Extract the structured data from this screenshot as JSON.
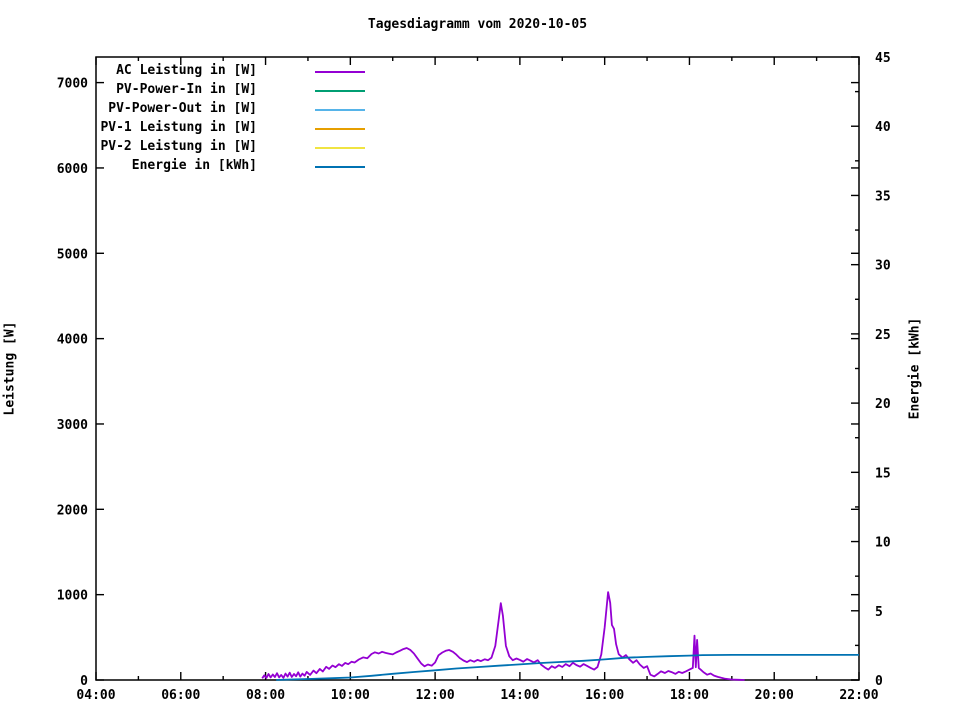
{
  "title": "Tagesdiagramm vom 2020-10-05",
  "axes": {
    "x": {
      "major_tick_labels": [
        "04:00",
        "06:00",
        "08:00",
        "10:00",
        "12:00",
        "14:00",
        "16:00",
        "18:00",
        "20:00",
        "22:00"
      ],
      "major_tick_hours": [
        4,
        6,
        8,
        10,
        12,
        14,
        16,
        18,
        20,
        22
      ],
      "minor_tick_hours": [
        5,
        7,
        9,
        11,
        13,
        15,
        17,
        19,
        21
      ],
      "range_hours": [
        4,
        22
      ]
    },
    "y_left": {
      "label": "Leistung [W]",
      "tick_values": [
        0,
        1000,
        2000,
        3000,
        4000,
        5000,
        6000,
        7000
      ],
      "range": [
        0,
        7300
      ]
    },
    "y_right": {
      "label": "Energie [kWh]",
      "tick_values": [
        0,
        5,
        10,
        15,
        20,
        25,
        30,
        35,
        40,
        45
      ],
      "minor_tick_step": 2.5,
      "range": [
        0,
        45
      ]
    }
  },
  "legend": [
    {
      "label": "AC Leistung in [W]",
      "color": "#9400d3"
    },
    {
      "label": "PV-Power-In in [W]",
      "color": "#009e73"
    },
    {
      "label": "PV-Power-Out in [W]",
      "color": "#56b4e9"
    },
    {
      "label": "PV-1 Leistung in [W]",
      "color": "#e69f00"
    },
    {
      "label": "PV-2 Leistung in [W]",
      "color": "#f0e442"
    },
    {
      "label": "Energie in [kWh]",
      "color": "#0072b2"
    }
  ],
  "chart_data": {
    "type": "line",
    "title": "Tagesdiagramm vom 2020-10-05",
    "xlabel": "",
    "ylabel": "Leistung [W]",
    "y2label": "Energie [kWh]",
    "x_unit": "hour_of_day",
    "xlim": [
      4,
      22
    ],
    "ylim": [
      0,
      7300
    ],
    "y2lim": [
      0,
      45
    ],
    "grid": false,
    "legend_position": "top-left-inside",
    "series": [
      {
        "name": "AC Leistung in [W]",
        "color": "#9400d3",
        "axis": "left",
        "points": [
          [
            7.92,
            20
          ],
          [
            7.97,
            55
          ],
          [
            8.02,
            25
          ],
          [
            8.07,
            70
          ],
          [
            8.12,
            30
          ],
          [
            8.17,
            65
          ],
          [
            8.22,
            35
          ],
          [
            8.27,
            80
          ],
          [
            8.32,
            30
          ],
          [
            8.37,
            60
          ],
          [
            8.42,
            25
          ],
          [
            8.47,
            75
          ],
          [
            8.52,
            40
          ],
          [
            8.57,
            85
          ],
          [
            8.62,
            35
          ],
          [
            8.67,
            70
          ],
          [
            8.72,
            45
          ],
          [
            8.77,
            90
          ],
          [
            8.82,
            40
          ],
          [
            8.87,
            75
          ],
          [
            8.92,
            50
          ],
          [
            8.97,
            95
          ],
          [
            9.05,
            60
          ],
          [
            9.13,
            110
          ],
          [
            9.2,
            80
          ],
          [
            9.28,
            130
          ],
          [
            9.35,
            100
          ],
          [
            9.43,
            155
          ],
          [
            9.5,
            130
          ],
          [
            9.58,
            170
          ],
          [
            9.65,
            150
          ],
          [
            9.73,
            185
          ],
          [
            9.8,
            165
          ],
          [
            9.88,
            200
          ],
          [
            9.95,
            185
          ],
          [
            10.03,
            215
          ],
          [
            10.1,
            205
          ],
          [
            10.2,
            240
          ],
          [
            10.3,
            265
          ],
          [
            10.4,
            255
          ],
          [
            10.5,
            305
          ],
          [
            10.58,
            325
          ],
          [
            10.67,
            310
          ],
          [
            10.75,
            330
          ],
          [
            10.83,
            318
          ],
          [
            10.92,
            308
          ],
          [
            11.0,
            300
          ],
          [
            11.08,
            322
          ],
          [
            11.17,
            342
          ],
          [
            11.25,
            362
          ],
          [
            11.33,
            375
          ],
          [
            11.42,
            350
          ],
          [
            11.5,
            310
          ],
          [
            11.58,
            255
          ],
          [
            11.67,
            195
          ],
          [
            11.75,
            160
          ],
          [
            11.83,
            182
          ],
          [
            11.92,
            168
          ],
          [
            12.0,
            205
          ],
          [
            12.08,
            290
          ],
          [
            12.17,
            322
          ],
          [
            12.25,
            342
          ],
          [
            12.33,
            352
          ],
          [
            12.42,
            330
          ],
          [
            12.5,
            298
          ],
          [
            12.58,
            258
          ],
          [
            12.67,
            228
          ],
          [
            12.75,
            210
          ],
          [
            12.83,
            232
          ],
          [
            12.92,
            215
          ],
          [
            13.0,
            236
          ],
          [
            13.08,
            222
          ],
          [
            13.17,
            242
          ],
          [
            13.25,
            232
          ],
          [
            13.33,
            262
          ],
          [
            13.42,
            400
          ],
          [
            13.5,
            705
          ],
          [
            13.55,
            900
          ],
          [
            13.6,
            755
          ],
          [
            13.67,
            400
          ],
          [
            13.75,
            278
          ],
          [
            13.83,
            232
          ],
          [
            13.92,
            252
          ],
          [
            14.0,
            235
          ],
          [
            14.08,
            215
          ],
          [
            14.17,
            246
          ],
          [
            14.25,
            226
          ],
          [
            14.33,
            206
          ],
          [
            14.42,
            232
          ],
          [
            14.5,
            180
          ],
          [
            14.58,
            150
          ],
          [
            14.67,
            122
          ],
          [
            14.75,
            162
          ],
          [
            14.83,
            142
          ],
          [
            14.92,
            172
          ],
          [
            15.0,
            152
          ],
          [
            15.08,
            186
          ],
          [
            15.17,
            162
          ],
          [
            15.25,
            202
          ],
          [
            15.33,
            176
          ],
          [
            15.42,
            156
          ],
          [
            15.5,
            186
          ],
          [
            15.58,
            166
          ],
          [
            15.67,
            142
          ],
          [
            15.75,
            122
          ],
          [
            15.83,
            152
          ],
          [
            15.92,
            300
          ],
          [
            16.0,
            620
          ],
          [
            16.08,
            1030
          ],
          [
            16.13,
            905
          ],
          [
            16.17,
            645
          ],
          [
            16.22,
            600
          ],
          [
            16.27,
            420
          ],
          [
            16.33,
            302
          ],
          [
            16.42,
            262
          ],
          [
            16.5,
            292
          ],
          [
            16.58,
            242
          ],
          [
            16.67,
            202
          ],
          [
            16.75,
            232
          ],
          [
            16.83,
            182
          ],
          [
            16.92,
            142
          ],
          [
            17.0,
            162
          ],
          [
            17.08,
            62
          ],
          [
            17.17,
            42
          ],
          [
            17.25,
            72
          ],
          [
            17.33,
            102
          ],
          [
            17.42,
            82
          ],
          [
            17.5,
            106
          ],
          [
            17.58,
            92
          ],
          [
            17.67,
            72
          ],
          [
            17.75,
            96
          ],
          [
            17.83,
            82
          ],
          [
            17.92,
            102
          ],
          [
            18.0,
            122
          ],
          [
            18.08,
            142
          ],
          [
            18.12,
            520
          ],
          [
            18.15,
            150
          ],
          [
            18.18,
            470
          ],
          [
            18.22,
            140
          ],
          [
            18.27,
            120
          ],
          [
            18.33,
            92
          ],
          [
            18.42,
            62
          ],
          [
            18.5,
            76
          ],
          [
            18.58,
            52
          ],
          [
            18.67,
            36
          ],
          [
            18.75,
            26
          ],
          [
            18.83,
            16
          ],
          [
            18.92,
            10
          ],
          [
            19.0,
            6
          ],
          [
            19.17,
            2
          ],
          [
            19.3,
            0
          ]
        ]
      },
      {
        "name": "PV-Power-In in [W]",
        "color": "#009e73",
        "axis": "left",
        "points": []
      },
      {
        "name": "PV-Power-Out in [W]",
        "color": "#56b4e9",
        "axis": "left",
        "points": []
      },
      {
        "name": "PV-1 Leistung in [W]",
        "color": "#e69f00",
        "axis": "left",
        "points": []
      },
      {
        "name": "PV-2 Leistung in [W]",
        "color": "#f0e442",
        "axis": "left",
        "points": []
      },
      {
        "name": "Energie in [kWh]",
        "color": "#0072b2",
        "axis": "right",
        "points": [
          [
            8.25,
            0
          ],
          [
            8.5,
            0.03
          ],
          [
            9.0,
            0.07
          ],
          [
            9.5,
            0.12
          ],
          [
            10.0,
            0.18
          ],
          [
            10.5,
            0.3
          ],
          [
            11.0,
            0.45
          ],
          [
            11.5,
            0.58
          ],
          [
            12.0,
            0.7
          ],
          [
            12.5,
            0.83
          ],
          [
            13.0,
            0.93
          ],
          [
            13.5,
            1.03
          ],
          [
            14.0,
            1.13
          ],
          [
            14.5,
            1.23
          ],
          [
            15.0,
            1.31
          ],
          [
            15.5,
            1.39
          ],
          [
            16.0,
            1.49
          ],
          [
            16.5,
            1.61
          ],
          [
            17.0,
            1.67
          ],
          [
            17.5,
            1.72
          ],
          [
            18.0,
            1.76
          ],
          [
            18.3,
            1.8
          ],
          [
            19.0,
            1.81
          ],
          [
            22.0,
            1.81
          ]
        ]
      }
    ]
  }
}
